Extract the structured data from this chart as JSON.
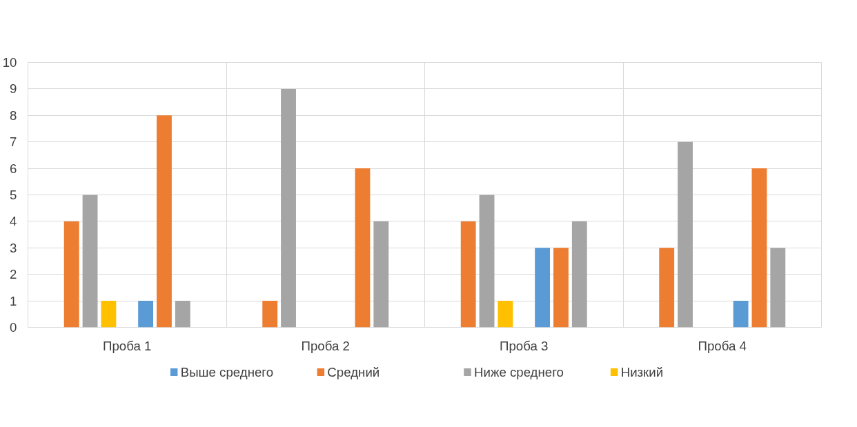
{
  "chart_data": {
    "type": "bar",
    "categories": [
      "Проба 1",
      "Проба 2",
      "Проба 3",
      "Проба 4"
    ],
    "series": [
      {
        "name": "Выше среднего",
        "color": "#5b9bd5",
        "values": [
          0,
          0,
          0,
          0
        ]
      },
      {
        "name": "Средний",
        "color": "#ed7d31",
        "values": [
          4,
          1,
          4,
          3
        ]
      },
      {
        "name": "Ниже среднего",
        "color": "#a5a5a5",
        "values": [
          5,
          9,
          5,
          7
        ]
      },
      {
        "name": "Низкий",
        "color": "#ffc000",
        "values": [
          1,
          0,
          1,
          0
        ]
      },
      {
        "color": "#5b9bd5",
        "values": [
          1,
          0,
          3,
          1
        ]
      },
      {
        "color": "#ed7d31",
        "values": [
          8,
          6,
          3,
          6
        ]
      },
      {
        "color": "#a5a5a5",
        "values": [
          1,
          4,
          4,
          3
        ]
      },
      {
        "color": "#ffc000",
        "values": [
          0,
          0,
          0,
          0
        ]
      }
    ],
    "ylim": [
      0,
      10
    ],
    "yticks": [
      0,
      1,
      2,
      3,
      4,
      5,
      6,
      7,
      8,
      9,
      10
    ],
    "grid": true,
    "legend": "bottom"
  }
}
